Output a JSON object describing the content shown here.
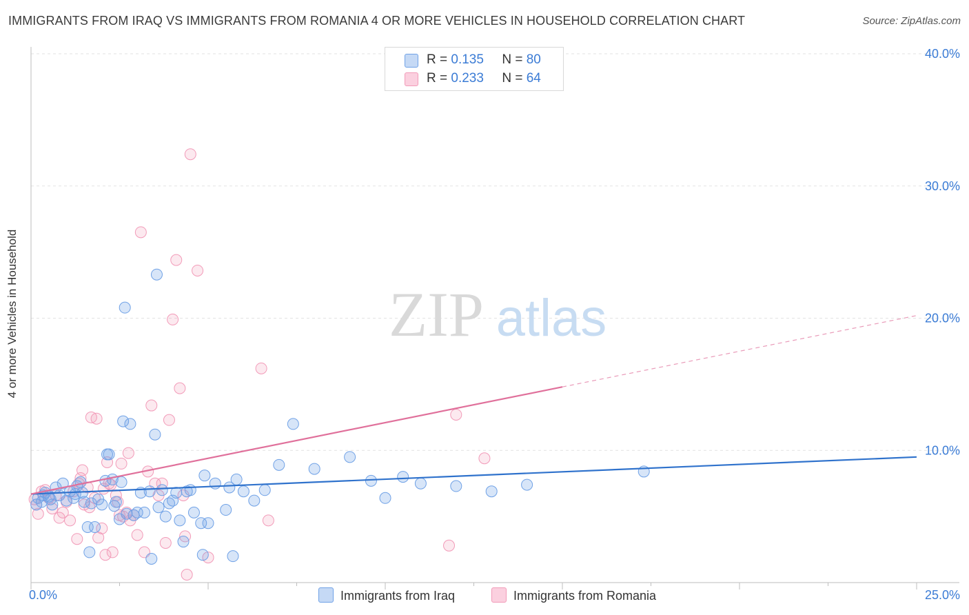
{
  "title": "IMMIGRANTS FROM IRAQ VS IMMIGRANTS FROM ROMANIA 4 OR MORE VEHICLES IN HOUSEHOLD CORRELATION CHART",
  "source": "Source: ZipAtlas.com",
  "watermark": {
    "zip": "ZIP",
    "atlas": "atlas"
  },
  "colors": {
    "iraq": "#6fa1e6",
    "iraq_line": "#2f72cc",
    "romania": "#f29ab8",
    "romania_line": "#e0709b",
    "tick": "#3a7bd5"
  },
  "legend_top": [
    {
      "r_label": "R =",
      "r_value": "0.135",
      "n_label": "N =",
      "n_value": "80"
    },
    {
      "r_label": "R =",
      "r_value": "0.233",
      "n_label": "N =",
      "n_value": "64"
    }
  ],
  "chart_data": {
    "type": "scatter",
    "title": "IMMIGRANTS FROM IRAQ VS IMMIGRANTS FROM ROMANIA 4 OR MORE VEHICLES IN HOUSEHOLD CORRELATION CHART",
    "xlabel": "",
    "ylabel": "4 or more Vehicles in Household",
    "xlim": [
      0,
      25
    ],
    "ylim": [
      0,
      40
    ],
    "x_tick_labels": [
      "0.0%",
      "25.0%"
    ],
    "y_ticks": [
      10,
      20,
      30,
      40
    ],
    "y_tick_labels": [
      "10.0%",
      "20.0%",
      "30.0%",
      "40.0%"
    ],
    "legend_position": "bottom",
    "series": [
      {
        "name": "Immigrants from Iraq",
        "r": 0.135,
        "n": 80,
        "trend": {
          "x0": 0,
          "y0": 6.7,
          "x1": 25,
          "y1": 9.5,
          "dash_from": 25
        },
        "points": [
          [
            0.2,
            6.4
          ],
          [
            0.3,
            6.1
          ],
          [
            0.4,
            6.8
          ],
          [
            0.5,
            6.5
          ],
          [
            0.6,
            5.9
          ],
          [
            0.7,
            7.2
          ],
          [
            0.8,
            6.6
          ],
          [
            0.9,
            7.5
          ],
          [
            1.0,
            6.2
          ],
          [
            1.1,
            6.9
          ],
          [
            1.2,
            6.4
          ],
          [
            1.3,
            7.3
          ],
          [
            1.4,
            7.6
          ],
          [
            1.5,
            6.1
          ],
          [
            1.6,
            4.2
          ],
          [
            1.65,
            2.3
          ],
          [
            1.7,
            6.0
          ],
          [
            1.8,
            4.2
          ],
          [
            1.9,
            6.3
          ],
          [
            2.0,
            5.9
          ],
          [
            2.1,
            7.7
          ],
          [
            2.15,
            9.7
          ],
          [
            2.2,
            9.7
          ],
          [
            2.3,
            7.8
          ],
          [
            2.35,
            5.8
          ],
          [
            2.4,
            6.1
          ],
          [
            2.5,
            4.8
          ],
          [
            2.6,
            12.2
          ],
          [
            2.65,
            20.8
          ],
          [
            2.7,
            5.2
          ],
          [
            2.8,
            12.0
          ],
          [
            2.9,
            5.1
          ],
          [
            3.0,
            5.3
          ],
          [
            3.1,
            6.8
          ],
          [
            3.2,
            5.3
          ],
          [
            3.35,
            6.9
          ],
          [
            3.4,
            1.8
          ],
          [
            3.5,
            11.2
          ],
          [
            3.55,
            23.3
          ],
          [
            3.6,
            5.7
          ],
          [
            3.7,
            7.0
          ],
          [
            3.8,
            5.0
          ],
          [
            3.9,
            6.0
          ],
          [
            4.0,
            6.2
          ],
          [
            4.1,
            6.8
          ],
          [
            4.2,
            4.7
          ],
          [
            4.3,
            3.1
          ],
          [
            4.4,
            6.9
          ],
          [
            4.5,
            7.0
          ],
          [
            4.6,
            5.3
          ],
          [
            4.8,
            4.5
          ],
          [
            4.85,
            2.1
          ],
          [
            4.9,
            8.1
          ],
          [
            5.0,
            4.5
          ],
          [
            5.2,
            7.5
          ],
          [
            5.5,
            5.5
          ],
          [
            5.6,
            7.2
          ],
          [
            5.7,
            2.0
          ],
          [
            5.8,
            7.8
          ],
          [
            6.0,
            6.9
          ],
          [
            6.3,
            6.2
          ],
          [
            6.6,
            7.0
          ],
          [
            7.0,
            8.9
          ],
          [
            7.4,
            12.0
          ],
          [
            8.0,
            8.6
          ],
          [
            9.0,
            9.5
          ],
          [
            9.6,
            7.7
          ],
          [
            10.0,
            6.4
          ],
          [
            10.5,
            8.0
          ],
          [
            11.0,
            7.5
          ],
          [
            12.0,
            7.3
          ],
          [
            13.0,
            6.9
          ],
          [
            14.0,
            7.4
          ],
          [
            17.3,
            8.4
          ],
          [
            0.15,
            5.9
          ],
          [
            0.35,
            6.6
          ],
          [
            0.55,
            6.3
          ],
          [
            1.25,
            6.7
          ],
          [
            1.45,
            6.8
          ],
          [
            2.55,
            7.6
          ]
        ]
      },
      {
        "name": "Immigrants from Romania",
        "r": 0.233,
        "n": 64,
        "trend": {
          "x0": 0,
          "y0": 6.7,
          "x1": 25,
          "y1": 20.2,
          "dash_from": 15
        },
        "points": [
          [
            0.1,
            6.3
          ],
          [
            0.15,
            5.9
          ],
          [
            0.2,
            5.2
          ],
          [
            0.3,
            6.9
          ],
          [
            0.4,
            7.0
          ],
          [
            0.5,
            6.4
          ],
          [
            0.6,
            5.6
          ],
          [
            0.7,
            6.6
          ],
          [
            0.8,
            4.9
          ],
          [
            0.9,
            5.3
          ],
          [
            1.0,
            6.1
          ],
          [
            1.1,
            4.7
          ],
          [
            1.2,
            6.9
          ],
          [
            1.3,
            3.3
          ],
          [
            1.35,
            7.5
          ],
          [
            1.4,
            7.9
          ],
          [
            1.45,
            8.5
          ],
          [
            1.5,
            5.9
          ],
          [
            1.6,
            7.2
          ],
          [
            1.7,
            12.5
          ],
          [
            1.8,
            6.4
          ],
          [
            1.85,
            12.4
          ],
          [
            1.9,
            3.4
          ],
          [
            2.0,
            4.1
          ],
          [
            2.05,
            7.1
          ],
          [
            2.1,
            2.1
          ],
          [
            2.15,
            9.1
          ],
          [
            2.2,
            7.5
          ],
          [
            2.3,
            2.3
          ],
          [
            2.4,
            6.6
          ],
          [
            2.45,
            6.1
          ],
          [
            2.5,
            5.1
          ],
          [
            2.55,
            9.0
          ],
          [
            2.6,
            5.0
          ],
          [
            2.7,
            5.3
          ],
          [
            2.75,
            9.8
          ],
          [
            2.8,
            4.7
          ],
          [
            2.9,
            5.1
          ],
          [
            3.0,
            3.6
          ],
          [
            3.1,
            26.5
          ],
          [
            3.2,
            2.3
          ],
          [
            3.3,
            8.4
          ],
          [
            3.4,
            13.4
          ],
          [
            3.5,
            7.5
          ],
          [
            3.6,
            6.6
          ],
          [
            3.7,
            7.5
          ],
          [
            3.8,
            3.0
          ],
          [
            3.9,
            12.3
          ],
          [
            4.0,
            19.9
          ],
          [
            4.1,
            24.4
          ],
          [
            4.2,
            14.7
          ],
          [
            4.3,
            6.6
          ],
          [
            4.4,
            0.6
          ],
          [
            4.5,
            32.4
          ],
          [
            4.7,
            23.6
          ],
          [
            5.0,
            1.9
          ],
          [
            6.5,
            16.2
          ],
          [
            6.7,
            4.7
          ],
          [
            12.0,
            12.7
          ],
          [
            12.8,
            9.4
          ],
          [
            11.8,
            2.8
          ],
          [
            4.35,
            3.5
          ],
          [
            1.65,
            5.7
          ],
          [
            2.25,
            7.4
          ]
        ]
      }
    ]
  },
  "legend_bottom": [
    {
      "label": "Immigrants from Iraq"
    },
    {
      "label": "Immigrants from Romania"
    }
  ]
}
